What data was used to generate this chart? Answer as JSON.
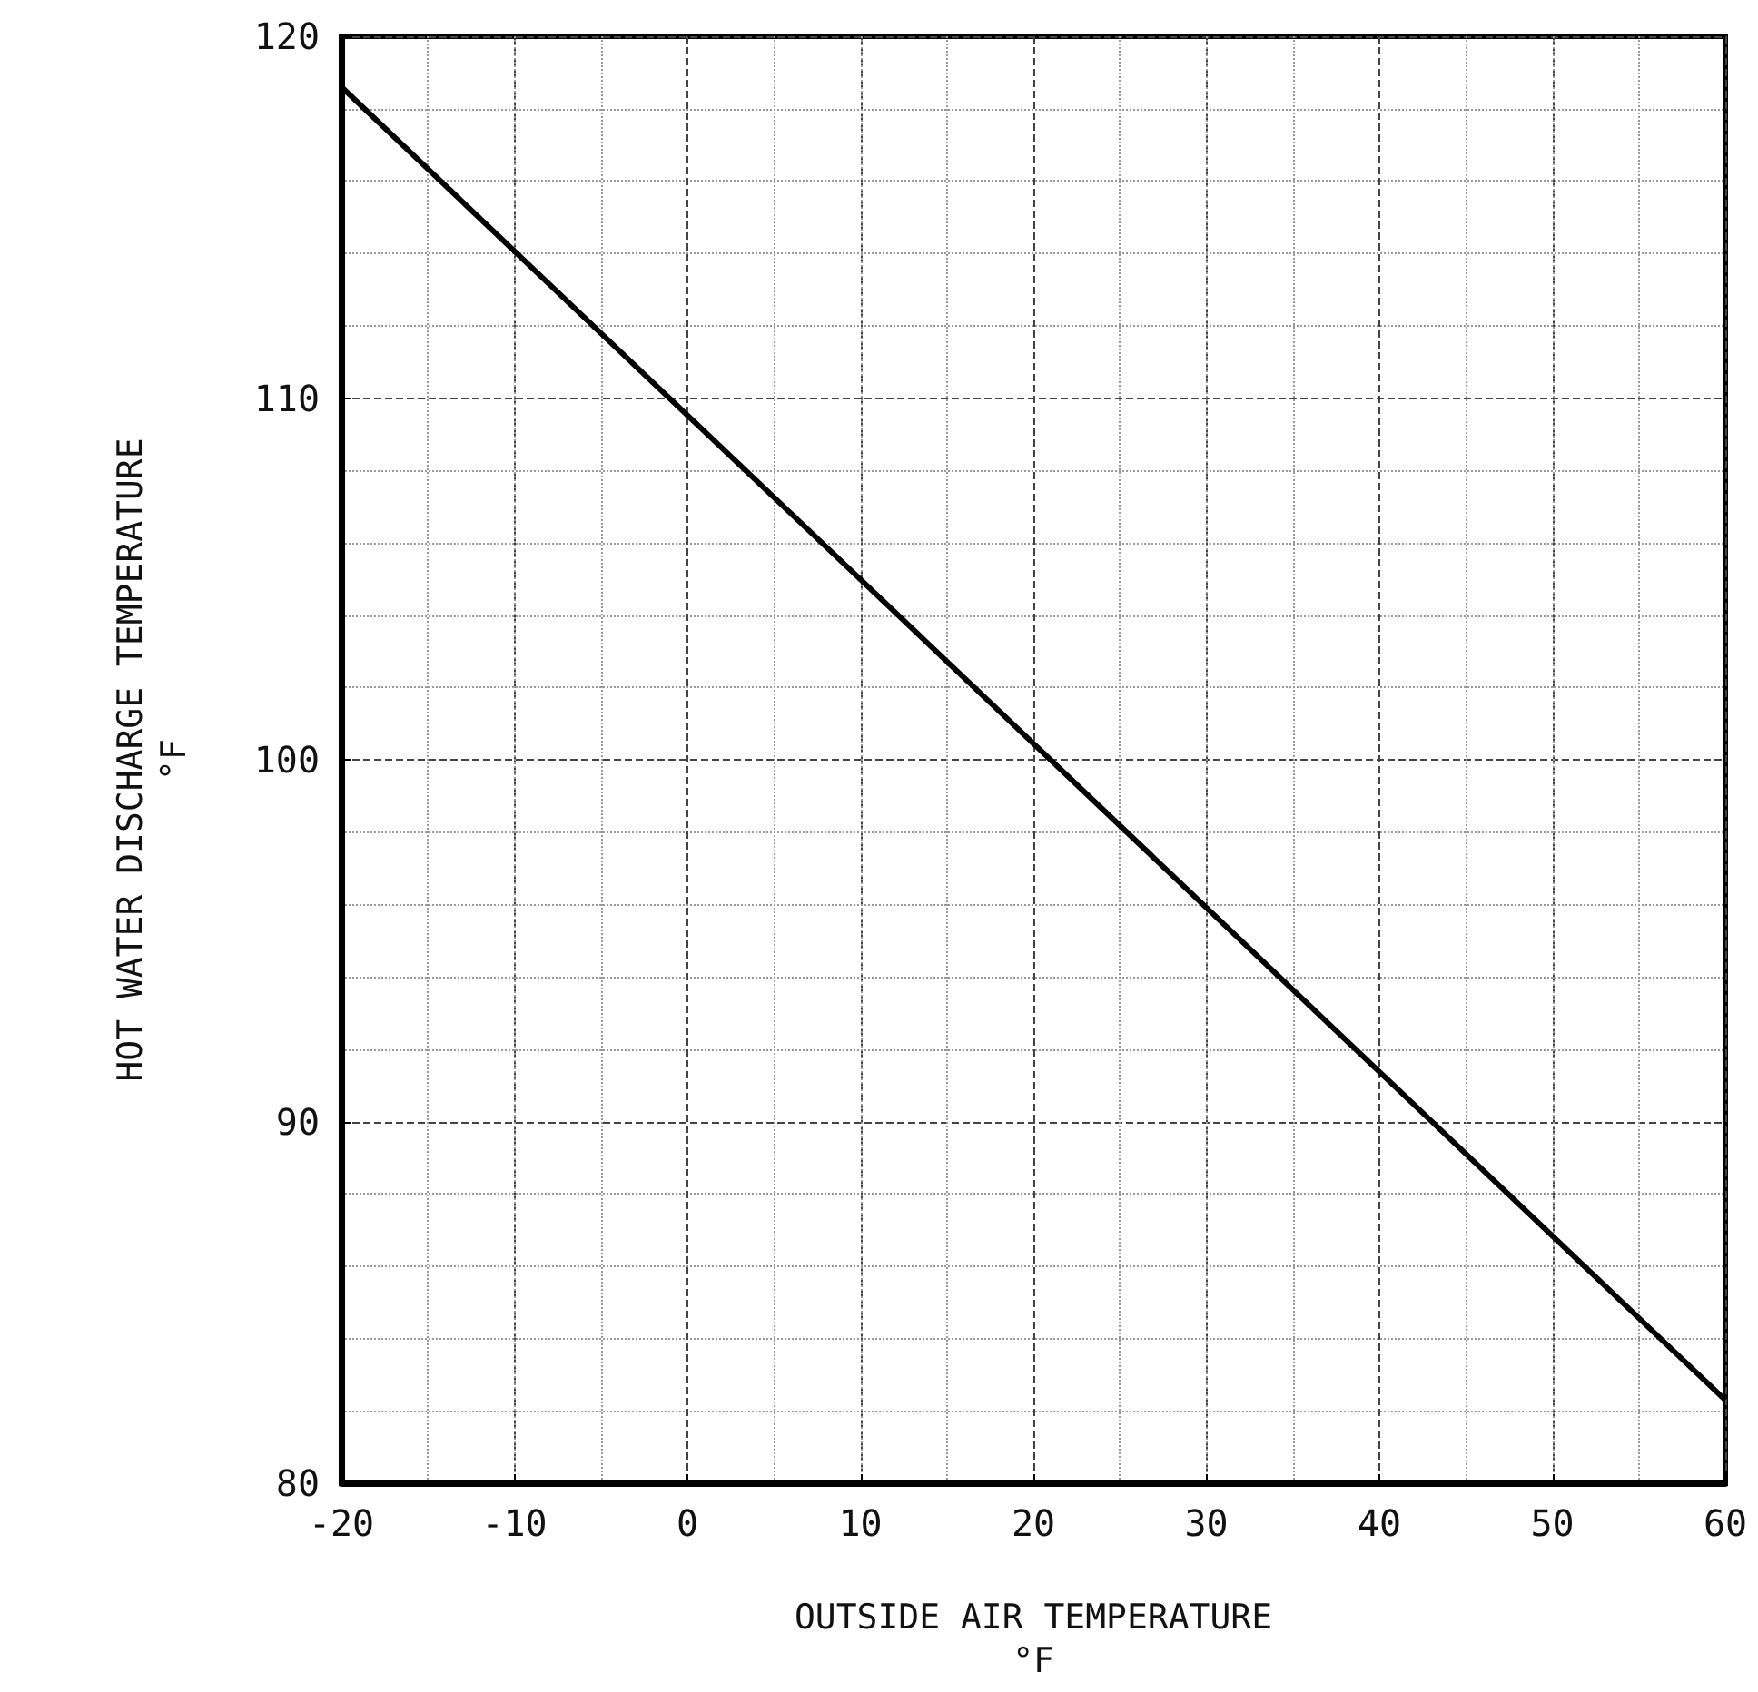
{
  "chart_data": {
    "type": "line",
    "xlabel": "OUTSIDE AIR TEMPERATURE\n°F",
    "ylabel": "HOT WATER DISCHARGE TEMPERATURE\n°F",
    "x": [
      -20,
      60
    ],
    "series": [
      {
        "color": "#000000",
        "values": [
          118.6,
          82.3
        ]
      }
    ],
    "xlim": [
      -20,
      60
    ],
    "xticks": [
      -20,
      -10,
      0,
      10,
      20,
      30,
      40,
      50,
      60
    ],
    "ylim": [
      80,
      120
    ],
    "yticks": [
      80,
      90,
      100,
      110,
      120
    ],
    "grid": true,
    "marker": "none",
    "line_style": "solid"
  }
}
